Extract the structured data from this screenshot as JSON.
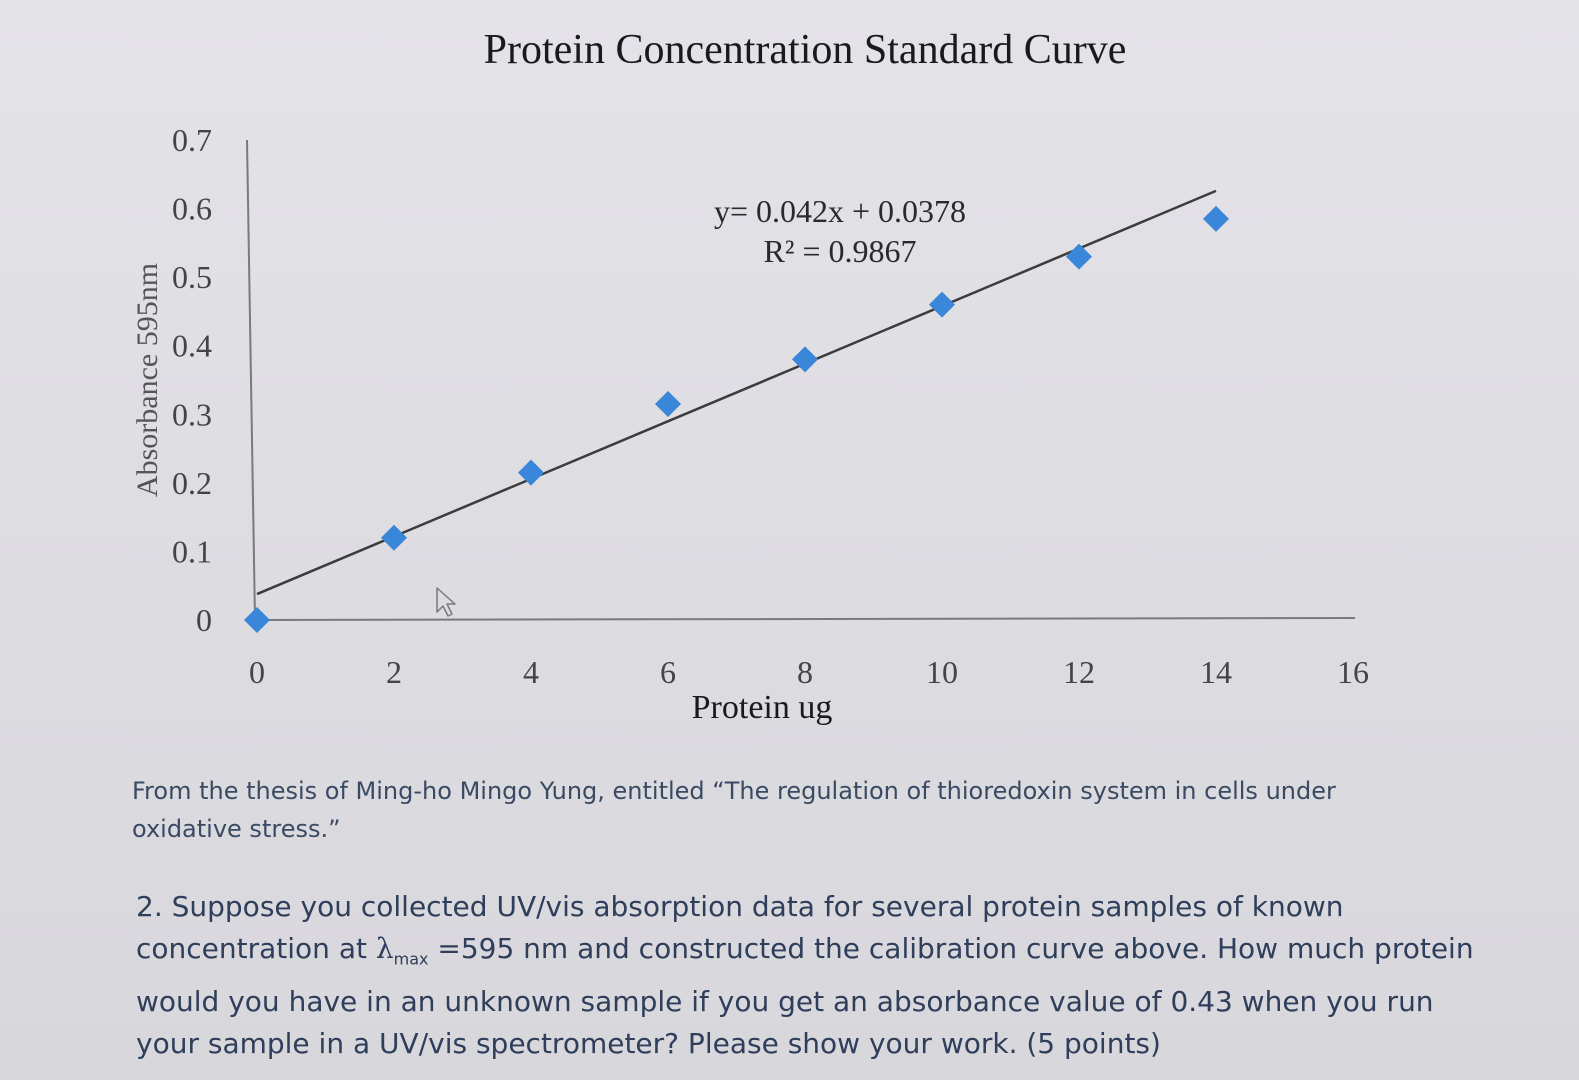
{
  "chart_data": {
    "type": "scatter",
    "title": "Protein Concentration Standard Curve",
    "xlabel": "Protein ug",
    "ylabel": "Absorbance 595nm",
    "xlim": [
      0,
      16
    ],
    "ylim": [
      0,
      0.7
    ],
    "x_ticks": [
      "0",
      "2",
      "4",
      "6",
      "8",
      "10",
      "12",
      "14",
      "16"
    ],
    "y_ticks": [
      "0",
      "0.1",
      "0.2",
      "0.3",
      "0.4",
      "0.5",
      "0.6",
      "0.7"
    ],
    "grid": false,
    "colors": {
      "points": "#3a86d8",
      "trendline": "#3c3c3c",
      "axes": "#7a7a7a"
    },
    "series": [
      {
        "x": [
          0,
          2,
          4,
          6,
          8,
          10,
          12,
          14
        ],
        "y": [
          0,
          0.12,
          0.215,
          0.315,
          0.38,
          0.46,
          0.53,
          0.585
        ]
      }
    ],
    "trendline": {
      "slope": 0.042,
      "intercept": 0.0378,
      "x_range": [
        0,
        14
      ],
      "equation": "y= 0.042x + 0.0378",
      "r_squared": "R² = 0.9867"
    }
  },
  "caption": "From the thesis of Ming-ho Mingo Yung, entitled “The regulation of thioredoxin system in cells under oxidative stress.”",
  "question": {
    "part1": "2. Suppose you collected UV/vis absorption data for several protein samples of known concentration at ",
    "lambda": "λ",
    "lambda_sub": "max",
    "part2": " =595 nm and constructed the calibration curve above. How much protein would you have in an unknown sample if you get an absorbance value of 0.43 when you run your sample in a UV/vis spectrometer? Please show your work. (5 points)"
  }
}
